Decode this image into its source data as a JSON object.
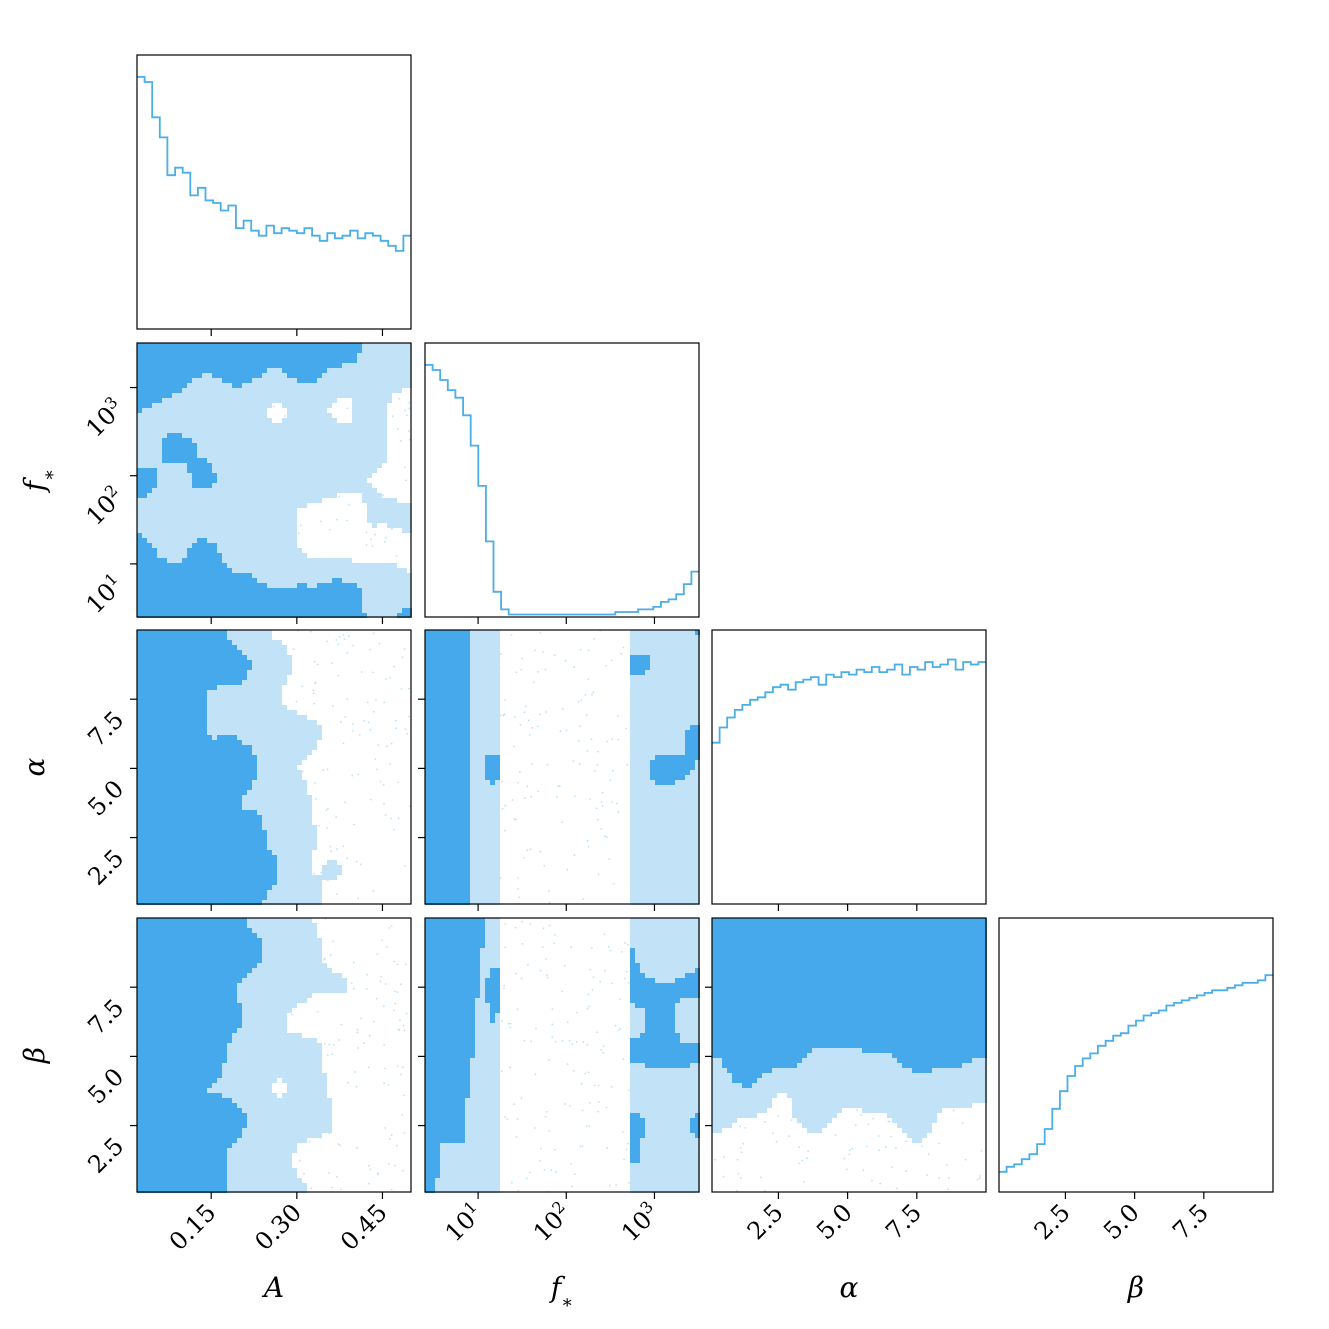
{
  "chart_data": {
    "type": "corner",
    "parameters": [
      {
        "symbol": "A",
        "label": "A",
        "scale": "linear",
        "range": [
          0.02,
          0.5
        ],
        "ticks": [
          0.15,
          0.3,
          0.45
        ],
        "tick_labels": [
          "0.15",
          "0.30",
          "0.45"
        ]
      },
      {
        "symbol": "f*",
        "label": "f_*",
        "scale": "log",
        "range": [
          2.5,
          3200
        ],
        "ticks": [
          10,
          100,
          1000
        ],
        "tick_labels": [
          "10^1",
          "10^2",
          "10^3"
        ]
      },
      {
        "symbol": "alpha",
        "label": "α",
        "scale": "linear",
        "range": [
          0.1,
          10
        ],
        "ticks": [
          2.5,
          5.0,
          7.5
        ],
        "tick_labels": [
          "2.5",
          "5.0",
          "7.5"
        ]
      },
      {
        "symbol": "beta",
        "label": "β",
        "scale": "linear",
        "range": [
          0.1,
          10
        ],
        "ticks": [
          2.5,
          5.0,
          7.5
        ],
        "tick_labels": [
          "2.5",
          "5.0",
          "7.5"
        ]
      }
    ],
    "marginals": [
      {
        "param": "A",
        "density": [
          1.0,
          0.98,
          0.84,
          0.76,
          0.61,
          0.64,
          0.62,
          0.53,
          0.56,
          0.51,
          0.5,
          0.47,
          0.49,
          0.4,
          0.43,
          0.39,
          0.37,
          0.41,
          0.38,
          0.4,
          0.39,
          0.38,
          0.4,
          0.37,
          0.35,
          0.38,
          0.36,
          0.37,
          0.39,
          0.36,
          0.38,
          0.37,
          0.35,
          0.33,
          0.31,
          0.37
        ]
      },
      {
        "param": "f*",
        "density": [
          1.0,
          0.98,
          0.94,
          0.9,
          0.87,
          0.8,
          0.68,
          0.52,
          0.3,
          0.1,
          0.03,
          0.01,
          0.01,
          0.01,
          0.01,
          0.01,
          0.01,
          0.01,
          0.01,
          0.01,
          0.01,
          0.01,
          0.01,
          0.01,
          0.01,
          0.02,
          0.02,
          0.02,
          0.03,
          0.03,
          0.04,
          0.06,
          0.07,
          0.09,
          0.13,
          0.18
        ]
      },
      {
        "param": "alpha",
        "density": [
          0.64,
          0.7,
          0.74,
          0.77,
          0.79,
          0.81,
          0.82,
          0.84,
          0.86,
          0.87,
          0.85,
          0.88,
          0.89,
          0.9,
          0.87,
          0.91,
          0.9,
          0.92,
          0.91,
          0.93,
          0.92,
          0.94,
          0.92,
          0.93,
          0.95,
          0.91,
          0.94,
          0.93,
          0.96,
          0.94,
          0.95,
          0.97,
          0.93,
          0.96,
          0.95,
          0.96
        ]
      },
      {
        "param": "beta",
        "density": [
          0.08,
          0.1,
          0.11,
          0.13,
          0.15,
          0.19,
          0.25,
          0.33,
          0.4,
          0.46,
          0.5,
          0.53,
          0.55,
          0.58,
          0.6,
          0.62,
          0.63,
          0.66,
          0.68,
          0.7,
          0.71,
          0.72,
          0.74,
          0.75,
          0.76,
          0.77,
          0.78,
          0.79,
          0.8,
          0.8,
          0.81,
          0.82,
          0.83,
          0.83,
          0.84,
          0.86
        ]
      }
    ],
    "colors": {
      "line": "#4aaee8",
      "inner_fill": "#45a9ec",
      "outer_fill": "#c2e2f8",
      "points": "#bfe1f7",
      "frame": "#000000"
    },
    "grid": false,
    "legend": "none"
  }
}
